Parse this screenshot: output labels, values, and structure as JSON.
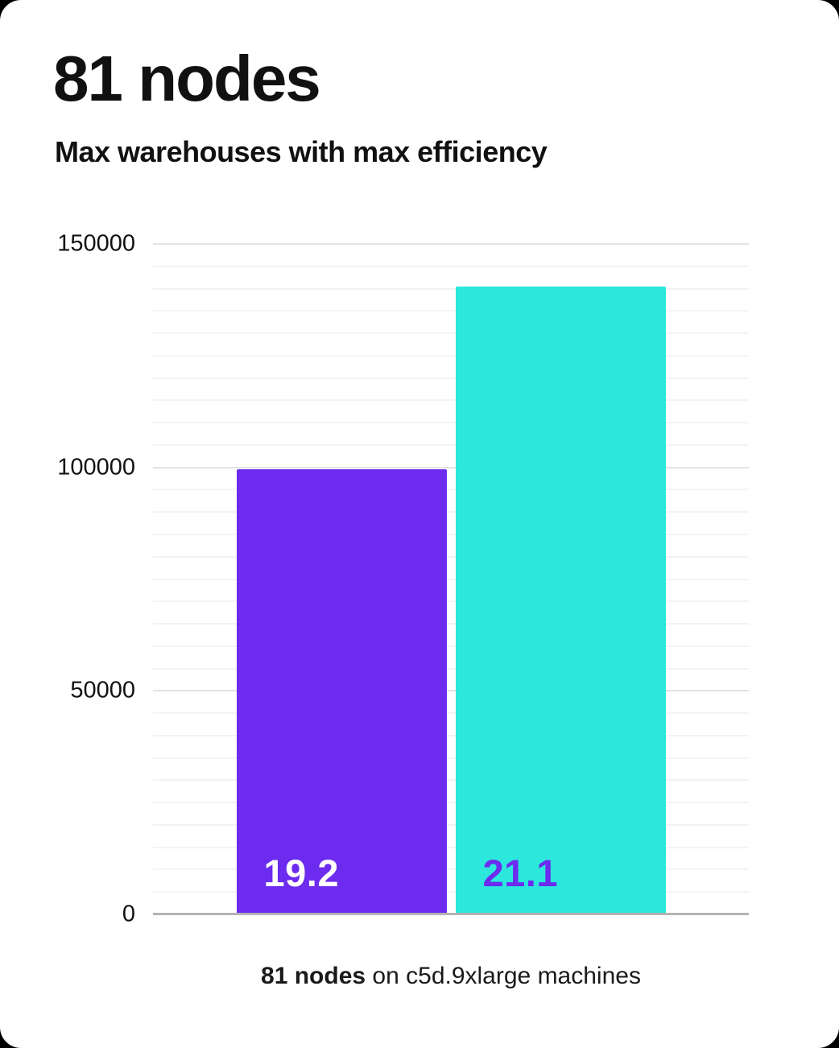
{
  "header": {
    "title": "81 nodes",
    "subtitle": "Max warehouses with max efficiency"
  },
  "caption": {
    "bold": "81 nodes",
    "rest": " on c5d.9xlarge machines"
  },
  "chart_data": {
    "type": "bar",
    "title": "81 nodes",
    "subtitle": "Max warehouses with max efficiency",
    "caption": "81 nodes on c5d.9xlarge machines",
    "categories": [
      "19.2",
      "21.1"
    ],
    "series": [
      {
        "name": "Max warehouses with max efficiency",
        "values": [
          99500,
          140500
        ]
      }
    ],
    "bar_labels": [
      "19.2",
      "21.1"
    ],
    "bar_colors": [
      "#6c2bee",
      "#2be7dc"
    ],
    "label_colors": [
      "#ffffff",
      "#6c2bee"
    ],
    "yticks": [
      0,
      50000,
      100000,
      150000
    ],
    "ytick_labels": [
      "0",
      "50000",
      "100000",
      "150000"
    ],
    "ylim": [
      0,
      150000
    ],
    "grid": true,
    "grid_minor_step": 5000,
    "grid_major_step": 50000,
    "legend": "none",
    "xlabel": "",
    "ylabel": ""
  },
  "colors": {
    "purple": "#6c2bee",
    "cyan": "#2be7dc",
    "grid_minor": "#f3f3f3",
    "grid_major": "#e2e2e2",
    "axis_line": "#b4b4b4",
    "text": "#111111",
    "card_background": "#ffffff"
  }
}
